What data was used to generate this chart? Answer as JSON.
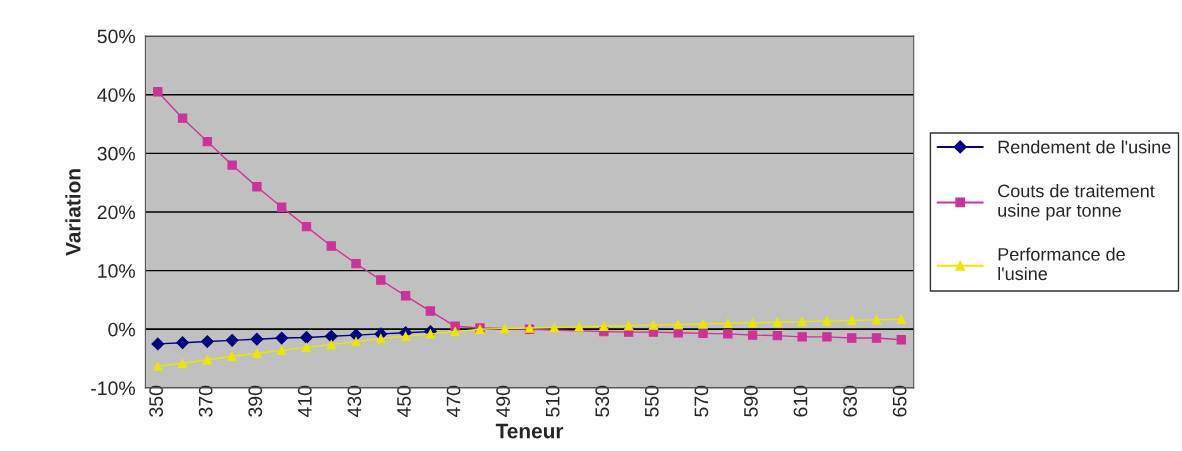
{
  "chart_data": {
    "type": "line",
    "xlabel": "Teneur",
    "ylabel": "Variation",
    "categories": [
      "350",
      null,
      "370",
      null,
      "390",
      null,
      "410",
      null,
      "430",
      null,
      "450",
      null,
      "470",
      null,
      "490",
      null,
      "510",
      null,
      "530",
      null,
      "550",
      null,
      "570",
      null,
      "590",
      null,
      "610",
      null,
      "630",
      null,
      "650"
    ],
    "series": [
      {
        "name": "Rendement de l'usine",
        "color": "#000080",
        "marker": "diamond",
        "values": [
          -2.5,
          -2.3,
          -2.1,
          -1.9,
          -1.7,
          -1.5,
          -1.4,
          -1.2,
          -1.0,
          -0.8,
          -0.6,
          -0.4,
          null,
          null,
          null,
          null,
          null,
          null,
          null,
          null,
          null,
          null,
          null,
          null,
          null,
          null,
          null,
          null,
          null,
          null,
          null
        ]
      },
      {
        "name": "Couts de traitement usine par tonne",
        "color": "#cc3399",
        "marker": "square",
        "values": [
          40.5,
          36,
          32,
          28,
          24.3,
          20.8,
          17.5,
          14.2,
          11.2,
          8.4,
          5.7,
          3.1,
          0.5,
          0.2,
          null,
          0,
          null,
          null,
          -0.4,
          -0.5,
          -0.5,
          -0.6,
          -0.7,
          -0.8,
          -1.0,
          -1.1,
          -1.3,
          -1.3,
          -1.5,
          -1.5,
          -1.8
        ]
      },
      {
        "name": "Performance de l'usine",
        "color": "#e8e800",
        "marker": "triangle",
        "values": [
          -6.3,
          -5.8,
          -5.2,
          -4.6,
          -4.1,
          -3.6,
          -3.1,
          -2.6,
          -2.1,
          -1.6,
          -1.2,
          -0.8,
          -0.4,
          0,
          0.1,
          0.2,
          0.3,
          0.4,
          0.5,
          0.6,
          0.7,
          0.8,
          0.9,
          1.0,
          1.1,
          1.2,
          1.3,
          1.4,
          1.5,
          1.6,
          1.7
        ]
      }
    ],
    "ylim": [
      -10,
      50
    ],
    "yticks": [
      {
        "value": -10,
        "label": "-10%"
      },
      {
        "value": 0,
        "label": "0%"
      },
      {
        "value": 10,
        "label": "10%"
      },
      {
        "value": 20,
        "label": "20%"
      },
      {
        "value": 30,
        "label": "30%"
      },
      {
        "value": 40,
        "label": "40%"
      },
      {
        "value": 50,
        "label": "50%"
      }
    ],
    "grid": "y",
    "legend": "right",
    "line_style": "solid"
  }
}
